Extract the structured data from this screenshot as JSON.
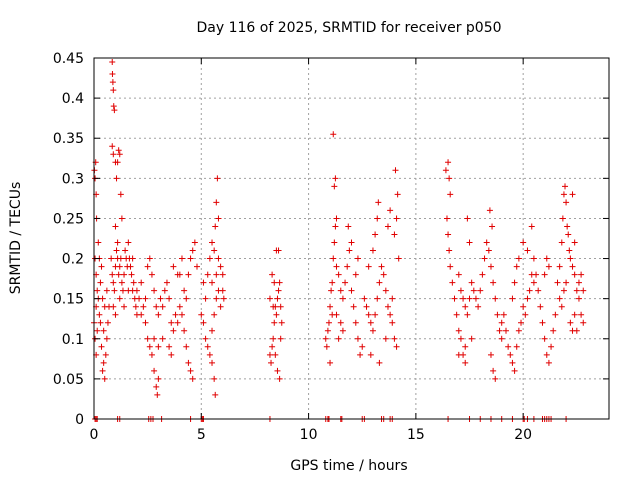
{
  "chart_data": {
    "type": "scatter",
    "title": "Day 116 of 2025, SRMTID for receiver p050",
    "xlabel": "GPS time / hours",
    "ylabel": "SRMTID / TECUs",
    "xlim": [
      0,
      24
    ],
    "ylim": [
      0,
      0.45
    ],
    "grid": true,
    "marker": "+",
    "color": "#e00000",
    "x_ticks": [
      0,
      5,
      10,
      15,
      20
    ],
    "x_tick_labels": [
      "0",
      "5",
      "10",
      "15",
      "20"
    ],
    "y_ticks": [
      0,
      0.05,
      0.1,
      0.15,
      0.2,
      0.25,
      0.3,
      0.35,
      0.4,
      0.45
    ],
    "y_tick_labels": [
      "0",
      "0.05",
      "0.1",
      "0.15",
      "0.2",
      "0.25",
      "0.3",
      "0.35",
      "0.4",
      "0.45"
    ],
    "points": [
      [
        0.0,
        0.12
      ],
      [
        0.02,
        0.31
      ],
      [
        0.05,
        0.3
      ],
      [
        0.08,
        0.32
      ],
      [
        0.1,
        0.28
      ],
      [
        0.12,
        0.25
      ],
      [
        0.05,
        0.2
      ],
      [
        0.1,
        0.18
      ],
      [
        0.15,
        0.16
      ],
      [
        0.05,
        0.1
      ],
      [
        0.1,
        0.08
      ],
      [
        0.15,
        0.11
      ],
      [
        0.2,
        0.15
      ],
      [
        0.25,
        0.13
      ],
      [
        0.3,
        0.12
      ],
      [
        0.35,
        0.09
      ],
      [
        0.4,
        0.06
      ],
      [
        0.45,
        0.07
      ],
      [
        0.5,
        0.05
      ],
      [
        0.55,
        0.08
      ],
      [
        0.6,
        0.1
      ],
      [
        0.65,
        0.12
      ],
      [
        0.7,
        0.14
      ],
      [
        0.3,
        0.17
      ],
      [
        0.35,
        0.19
      ],
      [
        0.2,
        0.22
      ],
      [
        0.4,
        0.15
      ],
      [
        0.5,
        0.14
      ],
      [
        0.6,
        0.16
      ],
      [
        0.1,
        0.14
      ],
      [
        0.25,
        0.2
      ],
      [
        0.45,
        0.11
      ],
      [
        0.85,
        0.445
      ],
      [
        0.86,
        0.43
      ],
      [
        0.88,
        0.42
      ],
      [
        0.9,
        0.41
      ],
      [
        0.92,
        0.39
      ],
      [
        0.95,
        0.385
      ],
      [
        0.85,
        0.34
      ],
      [
        0.9,
        0.33
      ],
      [
        1.0,
        0.32
      ],
      [
        1.05,
        0.3
      ],
      [
        1.1,
        0.32
      ],
      [
        1.15,
        0.335
      ],
      [
        1.2,
        0.33
      ],
      [
        1.25,
        0.28
      ],
      [
        1.3,
        0.25
      ],
      [
        1.0,
        0.24
      ],
      [
        1.1,
        0.22
      ],
      [
        0.8,
        0.2
      ],
      [
        0.85,
        0.18
      ],
      [
        0.9,
        0.17
      ],
      [
        0.95,
        0.16
      ],
      [
        1.0,
        0.19
      ],
      [
        1.05,
        0.21
      ],
      [
        1.1,
        0.2
      ],
      [
        1.15,
        0.18
      ],
      [
        1.2,
        0.19
      ],
      [
        1.25,
        0.2
      ],
      [
        1.3,
        0.17
      ],
      [
        1.35,
        0.16
      ],
      [
        1.4,
        0.18
      ],
      [
        1.45,
        0.21
      ],
      [
        1.5,
        0.2
      ],
      [
        1.55,
        0.19
      ],
      [
        1.6,
        0.22
      ],
      [
        1.65,
        0.2
      ],
      [
        1.7,
        0.19
      ],
      [
        1.75,
        0.18
      ],
      [
        1.8,
        0.16
      ],
      [
        1.85,
        0.17
      ],
      [
        1.9,
        0.15
      ],
      [
        1.95,
        0.14
      ],
      [
        2.0,
        0.13
      ],
      [
        0.9,
        0.14
      ],
      [
        1.0,
        0.13
      ],
      [
        1.2,
        0.15
      ],
      [
        1.4,
        0.14
      ],
      [
        1.6,
        0.16
      ],
      [
        1.8,
        0.2
      ],
      [
        2.0,
        0.16
      ],
      [
        2.1,
        0.15
      ],
      [
        2.2,
        0.17
      ],
      [
        2.3,
        0.14
      ],
      [
        2.4,
        0.12
      ],
      [
        2.5,
        0.1
      ],
      [
        2.6,
        0.09
      ],
      [
        2.7,
        0.08
      ],
      [
        2.8,
        0.06
      ],
      [
        2.9,
        0.04
      ],
      [
        2.95,
        0.03
      ],
      [
        3.0,
        0.05
      ],
      [
        2.5,
        0.19
      ],
      [
        2.6,
        0.2
      ],
      [
        2.7,
        0.18
      ],
      [
        2.8,
        0.16
      ],
      [
        2.9,
        0.14
      ],
      [
        3.0,
        0.13
      ],
      [
        3.1,
        0.15
      ],
      [
        3.2,
        0.14
      ],
      [
        3.3,
        0.16
      ],
      [
        3.4,
        0.17
      ],
      [
        3.5,
        0.15
      ],
      [
        3.6,
        0.12
      ],
      [
        3.7,
        0.11
      ],
      [
        3.8,
        0.13
      ],
      [
        3.9,
        0.12
      ],
      [
        4.0,
        0.14
      ],
      [
        4.1,
        0.13
      ],
      [
        4.2,
        0.16
      ],
      [
        4.3,
        0.15
      ],
      [
        4.4,
        0.18
      ],
      [
        4.5,
        0.2
      ],
      [
        4.6,
        0.21
      ],
      [
        4.0,
        0.18
      ],
      [
        4.2,
        0.11
      ],
      [
        4.3,
        0.09
      ],
      [
        4.4,
        0.07
      ],
      [
        4.5,
        0.06
      ],
      [
        4.6,
        0.05
      ],
      [
        3.5,
        0.09
      ],
      [
        3.6,
        0.08
      ],
      [
        3.2,
        0.1
      ],
      [
        3.0,
        0.09
      ],
      [
        2.8,
        0.1
      ],
      [
        2.4,
        0.15
      ],
      [
        2.2,
        0.13
      ],
      [
        3.7,
        0.19
      ],
      [
        3.9,
        0.18
      ],
      [
        4.1,
        0.2
      ],
      [
        4.7,
        0.22
      ],
      [
        4.8,
        0.19
      ],
      [
        5.0,
        0.13
      ],
      [
        5.1,
        0.12
      ],
      [
        5.2,
        0.1
      ],
      [
        5.3,
        0.09
      ],
      [
        5.4,
        0.08
      ],
      [
        5.5,
        0.07
      ],
      [
        5.6,
        0.05
      ],
      [
        5.65,
        0.03
      ],
      [
        5.5,
        0.11
      ],
      [
        5.6,
        0.13
      ],
      [
        5.7,
        0.15
      ],
      [
        5.8,
        0.16
      ],
      [
        5.9,
        0.14
      ],
      [
        6.0,
        0.16
      ],
      [
        6.05,
        0.15
      ],
      [
        5.5,
        0.22
      ],
      [
        5.6,
        0.21
      ],
      [
        5.65,
        0.24
      ],
      [
        5.7,
        0.27
      ],
      [
        5.75,
        0.3
      ],
      [
        5.8,
        0.25
      ],
      [
        5.4,
        0.2
      ],
      [
        5.3,
        0.18
      ],
      [
        5.2,
        0.15
      ],
      [
        5.1,
        0.17
      ],
      [
        5.9,
        0.19
      ],
      [
        6.0,
        0.18
      ],
      [
        5.7,
        0.18
      ],
      [
        5.8,
        0.2
      ],
      [
        5.5,
        0.17
      ],
      [
        8.2,
        0.08
      ],
      [
        8.25,
        0.07
      ],
      [
        8.3,
        0.09
      ],
      [
        8.35,
        0.1
      ],
      [
        8.4,
        0.12
      ],
      [
        8.45,
        0.14
      ],
      [
        8.5,
        0.13
      ],
      [
        8.55,
        0.15
      ],
      [
        8.6,
        0.16
      ],
      [
        8.65,
        0.17
      ],
      [
        8.7,
        0.14
      ],
      [
        8.75,
        0.12
      ],
      [
        8.3,
        0.18
      ],
      [
        8.4,
        0.17
      ],
      [
        8.5,
        0.21
      ],
      [
        8.6,
        0.21
      ],
      [
        8.7,
        0.1
      ],
      [
        8.45,
        0.08
      ],
      [
        8.55,
        0.06
      ],
      [
        8.65,
        0.05
      ],
      [
        8.2,
        0.15
      ],
      [
        8.35,
        0.14
      ],
      [
        10.8,
        0.1
      ],
      [
        10.85,
        0.09
      ],
      [
        10.9,
        0.11
      ],
      [
        10.95,
        0.12
      ],
      [
        11.0,
        0.14
      ],
      [
        11.05,
        0.16
      ],
      [
        11.1,
        0.17
      ],
      [
        11.15,
        0.2
      ],
      [
        11.2,
        0.22
      ],
      [
        11.25,
        0.24
      ],
      [
        11.3,
        0.25
      ],
      [
        11.2,
        0.29
      ],
      [
        11.25,
        0.3
      ],
      [
        11.15,
        0.355
      ],
      [
        11.3,
        0.19
      ],
      [
        11.4,
        0.18
      ],
      [
        11.5,
        0.16
      ],
      [
        11.6,
        0.15
      ],
      [
        11.7,
        0.17
      ],
      [
        11.8,
        0.19
      ],
      [
        11.9,
        0.21
      ],
      [
        12.0,
        0.22
      ],
      [
        11.85,
        0.24
      ],
      [
        11.5,
        0.12
      ],
      [
        11.6,
        0.11
      ],
      [
        11.4,
        0.1
      ],
      [
        11.3,
        0.13
      ],
      [
        12.0,
        0.16
      ],
      [
        12.1,
        0.14
      ],
      [
        12.2,
        0.12
      ],
      [
        12.3,
        0.1
      ],
      [
        12.4,
        0.08
      ],
      [
        12.5,
        0.09
      ],
      [
        12.2,
        0.18
      ],
      [
        12.3,
        0.2
      ],
      [
        11.0,
        0.07
      ],
      [
        11.1,
        0.13
      ],
      [
        12.6,
        0.15
      ],
      [
        12.7,
        0.14
      ],
      [
        12.8,
        0.13
      ],
      [
        12.9,
        0.12
      ],
      [
        13.0,
        0.11
      ],
      [
        13.1,
        0.13
      ],
      [
        13.2,
        0.15
      ],
      [
        13.3,
        0.17
      ],
      [
        13.4,
        0.19
      ],
      [
        13.5,
        0.18
      ],
      [
        13.6,
        0.16
      ],
      [
        13.7,
        0.14
      ],
      [
        13.8,
        0.13
      ],
      [
        13.9,
        0.12
      ],
      [
        14.0,
        0.1
      ],
      [
        14.1,
        0.09
      ],
      [
        13.0,
        0.21
      ],
      [
        13.1,
        0.23
      ],
      [
        13.2,
        0.25
      ],
      [
        13.25,
        0.27
      ],
      [
        13.7,
        0.24
      ],
      [
        13.8,
        0.26
      ],
      [
        14.0,
        0.23
      ],
      [
        14.1,
        0.25
      ],
      [
        14.05,
        0.31
      ],
      [
        14.15,
        0.28
      ],
      [
        12.8,
        0.19
      ],
      [
        12.9,
        0.08
      ],
      [
        13.3,
        0.07
      ],
      [
        13.6,
        0.1
      ],
      [
        13.9,
        0.15
      ],
      [
        14.2,
        0.2
      ],
      [
        16.4,
        0.31
      ],
      [
        16.5,
        0.32
      ],
      [
        16.55,
        0.3
      ],
      [
        16.6,
        0.28
      ],
      [
        16.45,
        0.25
      ],
      [
        16.5,
        0.23
      ],
      [
        16.55,
        0.21
      ],
      [
        16.6,
        0.19
      ],
      [
        16.7,
        0.17
      ],
      [
        16.8,
        0.15
      ],
      [
        16.9,
        0.13
      ],
      [
        17.0,
        0.11
      ],
      [
        17.1,
        0.1
      ],
      [
        17.2,
        0.08
      ],
      [
        17.3,
        0.07
      ],
      [
        17.0,
        0.18
      ],
      [
        17.1,
        0.16
      ],
      [
        17.2,
        0.15
      ],
      [
        17.3,
        0.14
      ],
      [
        17.4,
        0.13
      ],
      [
        17.5,
        0.15
      ],
      [
        17.6,
        0.17
      ],
      [
        17.7,
        0.16
      ],
      [
        17.8,
        0.15
      ],
      [
        17.9,
        0.14
      ],
      [
        18.0,
        0.16
      ],
      [
        18.1,
        0.18
      ],
      [
        18.2,
        0.2
      ],
      [
        18.3,
        0.22
      ],
      [
        17.4,
        0.25
      ],
      [
        17.5,
        0.22
      ],
      [
        18.4,
        0.21
      ],
      [
        18.5,
        0.19
      ],
      [
        18.6,
        0.17
      ],
      [
        18.7,
        0.15
      ],
      [
        18.8,
        0.13
      ],
      [
        18.9,
        0.11
      ],
      [
        19.0,
        0.1
      ],
      [
        18.5,
        0.08
      ],
      [
        18.6,
        0.06
      ],
      [
        18.7,
        0.05
      ],
      [
        18.45,
        0.26
      ],
      [
        18.55,
        0.24
      ],
      [
        17.0,
        0.08
      ],
      [
        17.3,
        0.09
      ],
      [
        17.6,
        0.1
      ],
      [
        19.0,
        0.12
      ],
      [
        19.1,
        0.13
      ],
      [
        19.2,
        0.11
      ],
      [
        19.3,
        0.09
      ],
      [
        19.4,
        0.08
      ],
      [
        19.5,
        0.07
      ],
      [
        19.6,
        0.06
      ],
      [
        19.7,
        0.09
      ],
      [
        19.8,
        0.11
      ],
      [
        19.9,
        0.12
      ],
      [
        20.0,
        0.14
      ],
      [
        20.1,
        0.13
      ],
      [
        20.2,
        0.15
      ],
      [
        20.3,
        0.16
      ],
      [
        20.4,
        0.18
      ],
      [
        20.5,
        0.17
      ],
      [
        19.5,
        0.15
      ],
      [
        19.6,
        0.17
      ],
      [
        19.7,
        0.19
      ],
      [
        19.8,
        0.2
      ],
      [
        20.0,
        0.22
      ],
      [
        20.2,
        0.21
      ],
      [
        20.4,
        0.24
      ],
      [
        20.5,
        0.2
      ],
      [
        20.6,
        0.18
      ],
      [
        20.7,
        0.16
      ],
      [
        20.8,
        0.14
      ],
      [
        20.9,
        0.12
      ],
      [
        21.0,
        0.1
      ],
      [
        21.1,
        0.08
      ],
      [
        21.2,
        0.07
      ],
      [
        21.3,
        0.09
      ],
      [
        21.4,
        0.11
      ],
      [
        21.5,
        0.13
      ],
      [
        21.0,
        0.18
      ],
      [
        21.1,
        0.2
      ],
      [
        21.2,
        0.19
      ],
      [
        21.6,
        0.17
      ],
      [
        21.7,
        0.19
      ],
      [
        21.8,
        0.22
      ],
      [
        21.85,
        0.25
      ],
      [
        21.9,
        0.28
      ],
      [
        21.95,
        0.29
      ],
      [
        22.0,
        0.27
      ],
      [
        22.05,
        0.24
      ],
      [
        22.1,
        0.23
      ],
      [
        22.15,
        0.21
      ],
      [
        22.2,
        0.2
      ],
      [
        22.3,
        0.19
      ],
      [
        22.4,
        0.18
      ],
      [
        22.5,
        0.16
      ],
      [
        22.6,
        0.15
      ],
      [
        22.7,
        0.13
      ],
      [
        22.8,
        0.12
      ],
      [
        21.7,
        0.15
      ],
      [
        21.8,
        0.14
      ],
      [
        21.9,
        0.16
      ],
      [
        22.0,
        0.17
      ],
      [
        22.2,
        0.12
      ],
      [
        22.3,
        0.11
      ],
      [
        22.4,
        0.13
      ],
      [
        22.5,
        0.11
      ],
      [
        22.6,
        0.17
      ],
      [
        22.7,
        0.18
      ],
      [
        22.8,
        0.16
      ],
      [
        22.3,
        0.28
      ],
      [
        22.4,
        0.22
      ]
    ],
    "zero_points": [
      0.05,
      0.1,
      0.15,
      1.1,
      1.2,
      2.55,
      2.65,
      2.75,
      3.15,
      4.5,
      5.0,
      5.05,
      5.1,
      8.2,
      10.8,
      10.9,
      10.95,
      11.5,
      11.55,
      12.5,
      12.6,
      13.4,
      13.5,
      13.8,
      13.9,
      16.5,
      17.5,
      18.0,
      18.5,
      19.0,
      19.5,
      20.0,
      20.05,
      20.2,
      20.5,
      20.9,
      21.0,
      21.1,
      21.2,
      21.3,
      22.0
    ]
  }
}
